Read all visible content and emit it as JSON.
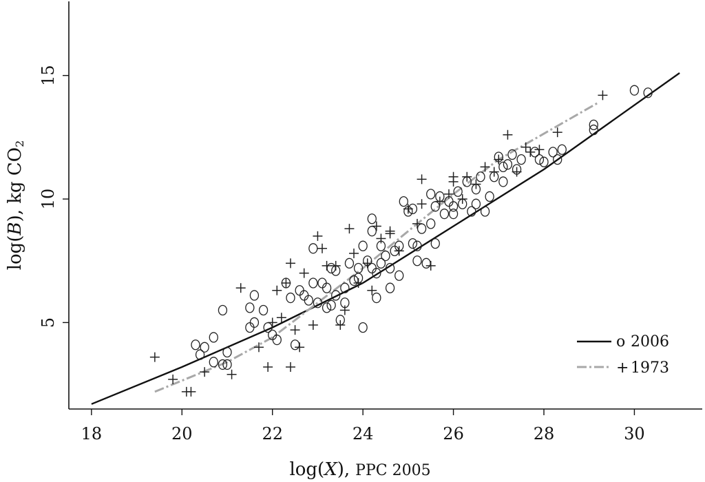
{
  "chart_data": {
    "type": "scatter",
    "title": "",
    "xlabel_main": "log(",
    "xlabel_var": "X",
    "xlabel_close": "),",
    "xlabel_unit": "PPC 2005",
    "ylabel_main": "log(",
    "ylabel_var": "B",
    "ylabel_close": "), kg  CO",
    "ylabel_sub": "2",
    "xlim": [
      17.5,
      31.5
    ],
    "ylim": [
      1.5,
      18.0
    ],
    "xticks": [
      18,
      20,
      22,
      24,
      26,
      28,
      30
    ],
    "yticks": [
      5,
      10,
      15
    ],
    "legend_position": "bottom-right",
    "legend": [
      {
        "marker": "o",
        "label": "2006"
      },
      {
        "marker": "+",
        "label": "1973"
      }
    ],
    "series": [
      {
        "name": "2006",
        "marker": "o",
        "fit_line": [
          [
            18.0,
            1.7
          ],
          [
            20.0,
            3.2
          ],
          [
            22.0,
            4.8
          ],
          [
            24.0,
            6.6
          ],
          [
            26.0,
            8.9
          ],
          [
            28.0,
            11.2
          ],
          [
            31.0,
            15.1
          ]
        ],
        "points": [
          [
            20.3,
            4.1
          ],
          [
            20.4,
            3.7
          ],
          [
            20.5,
            4.0
          ],
          [
            20.7,
            4.4
          ],
          [
            20.7,
            3.4
          ],
          [
            20.9,
            3.3
          ],
          [
            21.0,
            3.3
          ],
          [
            21.0,
            3.8
          ],
          [
            20.9,
            5.5
          ],
          [
            21.5,
            4.8
          ],
          [
            21.6,
            5.0
          ],
          [
            21.6,
            6.1
          ],
          [
            21.5,
            5.6
          ],
          [
            21.8,
            5.5
          ],
          [
            21.9,
            4.8
          ],
          [
            22.0,
            4.5
          ],
          [
            22.1,
            4.3
          ],
          [
            22.3,
            6.6
          ],
          [
            22.4,
            6.0
          ],
          [
            22.5,
            4.1
          ],
          [
            22.6,
            6.3
          ],
          [
            22.7,
            6.1
          ],
          [
            22.8,
            5.9
          ],
          [
            22.9,
            6.6
          ],
          [
            22.9,
            8.0
          ],
          [
            23.0,
            5.8
          ],
          [
            23.1,
            6.6
          ],
          [
            23.2,
            5.6
          ],
          [
            23.2,
            6.4
          ],
          [
            23.3,
            7.2
          ],
          [
            23.3,
            5.7
          ],
          [
            23.4,
            6.1
          ],
          [
            23.4,
            7.1
          ],
          [
            23.5,
            5.1
          ],
          [
            23.6,
            6.4
          ],
          [
            23.6,
            5.8
          ],
          [
            23.7,
            7.4
          ],
          [
            23.8,
            6.7
          ],
          [
            23.9,
            6.8
          ],
          [
            23.9,
            7.2
          ],
          [
            24.0,
            4.8
          ],
          [
            24.0,
            8.1
          ],
          [
            24.1,
            7.5
          ],
          [
            24.2,
            7.2
          ],
          [
            24.2,
            8.7
          ],
          [
            24.2,
            9.2
          ],
          [
            24.3,
            6.0
          ],
          [
            24.3,
            7.0
          ],
          [
            24.4,
            8.1
          ],
          [
            24.4,
            7.4
          ],
          [
            24.5,
            7.7
          ],
          [
            24.6,
            7.2
          ],
          [
            24.6,
            6.4
          ],
          [
            24.7,
            7.9
          ],
          [
            24.8,
            6.9
          ],
          [
            24.8,
            8.1
          ],
          [
            24.9,
            9.9
          ],
          [
            25.0,
            9.5
          ],
          [
            25.1,
            9.6
          ],
          [
            25.1,
            8.2
          ],
          [
            25.2,
            8.1
          ],
          [
            25.2,
            7.5
          ],
          [
            25.3,
            8.8
          ],
          [
            25.4,
            7.4
          ],
          [
            25.5,
            10.2
          ],
          [
            25.5,
            9.0
          ],
          [
            25.6,
            9.7
          ],
          [
            25.6,
            8.2
          ],
          [
            25.7,
            10.1
          ],
          [
            25.8,
            9.4
          ],
          [
            25.9,
            9.9
          ],
          [
            26.0,
            9.4
          ],
          [
            26.0,
            9.7
          ],
          [
            26.1,
            10.3
          ],
          [
            26.2,
            9.8
          ],
          [
            26.3,
            10.7
          ],
          [
            26.4,
            9.5
          ],
          [
            26.5,
            10.4
          ],
          [
            26.5,
            9.8
          ],
          [
            26.6,
            10.9
          ],
          [
            26.7,
            9.5
          ],
          [
            26.8,
            10.1
          ],
          [
            26.9,
            10.9
          ],
          [
            27.0,
            11.7
          ],
          [
            27.1,
            11.3
          ],
          [
            27.1,
            10.7
          ],
          [
            27.2,
            11.4
          ],
          [
            27.3,
            11.8
          ],
          [
            27.4,
            11.2
          ],
          [
            27.5,
            11.6
          ],
          [
            27.8,
            11.9
          ],
          [
            27.9,
            11.6
          ],
          [
            28.0,
            11.5
          ],
          [
            28.2,
            11.9
          ],
          [
            28.3,
            11.6
          ],
          [
            28.4,
            12.0
          ],
          [
            29.1,
            12.8
          ],
          [
            29.1,
            13.0
          ],
          [
            30.0,
            14.4
          ],
          [
            30.3,
            14.3
          ]
        ]
      },
      {
        "name": "1973",
        "marker": "+",
        "fit_line": [
          [
            19.4,
            2.2
          ],
          [
            21.0,
            3.4
          ],
          [
            22.0,
            4.4
          ],
          [
            23.0,
            5.8
          ],
          [
            24.0,
            7.2
          ],
          [
            25.0,
            8.7
          ],
          [
            26.0,
            10.2
          ],
          [
            27.0,
            11.6
          ],
          [
            29.2,
            13.9
          ]
        ],
        "points": [
          [
            19.4,
            3.6
          ],
          [
            19.8,
            2.7
          ],
          [
            20.1,
            2.2
          ],
          [
            20.2,
            2.2
          ],
          [
            20.5,
            3.0
          ],
          [
            21.1,
            2.9
          ],
          [
            21.3,
            6.4
          ],
          [
            21.7,
            4.0
          ],
          [
            21.9,
            3.2
          ],
          [
            22.0,
            5.0
          ],
          [
            22.1,
            6.3
          ],
          [
            22.2,
            5.2
          ],
          [
            22.3,
            6.6
          ],
          [
            22.4,
            3.2
          ],
          [
            22.4,
            7.4
          ],
          [
            22.5,
            4.7
          ],
          [
            22.6,
            4.0
          ],
          [
            22.7,
            7.0
          ],
          [
            22.9,
            4.9
          ],
          [
            23.0,
            8.5
          ],
          [
            23.1,
            8.0
          ],
          [
            23.2,
            7.3
          ],
          [
            23.4,
            7.3
          ],
          [
            23.5,
            4.9
          ],
          [
            23.6,
            5.5
          ],
          [
            23.7,
            8.8
          ],
          [
            23.8,
            7.8
          ],
          [
            23.9,
            6.6
          ],
          [
            24.1,
            7.4
          ],
          [
            24.2,
            6.3
          ],
          [
            24.3,
            8.9
          ],
          [
            24.4,
            8.4
          ],
          [
            24.6,
            8.6
          ],
          [
            24.6,
            8.7
          ],
          [
            24.8,
            7.9
          ],
          [
            25.0,
            9.6
          ],
          [
            25.2,
            9.0
          ],
          [
            25.3,
            9.8
          ],
          [
            25.3,
            10.8
          ],
          [
            25.5,
            7.3
          ],
          [
            25.7,
            9.9
          ],
          [
            25.9,
            10.2
          ],
          [
            26.0,
            10.9
          ],
          [
            26.0,
            10.7
          ],
          [
            26.2,
            10.0
          ],
          [
            26.3,
            10.9
          ],
          [
            26.5,
            10.6
          ],
          [
            26.7,
            11.3
          ],
          [
            26.9,
            11.1
          ],
          [
            27.0,
            11.6
          ],
          [
            27.2,
            12.6
          ],
          [
            27.4,
            11.1
          ],
          [
            27.6,
            12.1
          ],
          [
            27.7,
            11.9
          ],
          [
            27.9,
            12.0
          ],
          [
            28.3,
            12.7
          ],
          [
            29.3,
            14.2
          ]
        ]
      }
    ]
  }
}
